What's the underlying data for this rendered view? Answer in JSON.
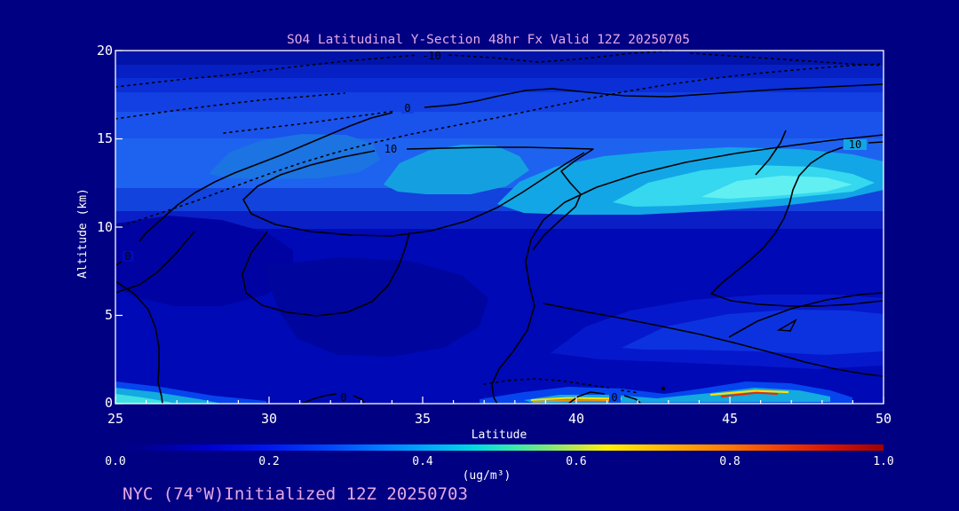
{
  "chart_data": {
    "type": "heatmap",
    "title": "SO4 Latitudinal Y-Section 48hr  Fx Valid 12Z 20250705",
    "xlabel": "Latitude",
    "ylabel": "Altitude (km)",
    "xlim": [
      25,
      50
    ],
    "ylim": [
      0,
      20
    ],
    "x_tick_labels": [
      "25",
      "30",
      "35",
      "40",
      "45",
      "50"
    ],
    "y_tick_labels": [
      "20",
      "15",
      "10",
      "5",
      "0"
    ],
    "grid": false,
    "colorbar": {
      "label": "(ug/m³)",
      "range": [
        0.0,
        1.0
      ],
      "ticks": [
        "0.0",
        "0.2",
        "0.4",
        "0.6",
        "0.8",
        "1.0"
      ],
      "stops": [
        {
          "pos": "0%",
          "color": "#000082"
        },
        {
          "pos": "5%",
          "color": "#000099"
        },
        {
          "pos": "12%",
          "color": "#0000CD"
        },
        {
          "pos": "20%",
          "color": "#0018EE"
        },
        {
          "pos": "28%",
          "color": "#0048F8"
        },
        {
          "pos": "35%",
          "color": "#0080FF"
        },
        {
          "pos": "42%",
          "color": "#00B4F4"
        },
        {
          "pos": "47%",
          "color": "#00DCDC"
        },
        {
          "pos": "52%",
          "color": "#3CE8A8"
        },
        {
          "pos": "56%",
          "color": "#78E878"
        },
        {
          "pos": "60%",
          "color": "#BEE846"
        },
        {
          "pos": "64%",
          "color": "#FFF000"
        },
        {
          "pos": "72%",
          "color": "#FFB400"
        },
        {
          "pos": "80%",
          "color": "#FF7800"
        },
        {
          "pos": "87%",
          "color": "#F03C00"
        },
        {
          "pos": "93%",
          "color": "#D81400"
        },
        {
          "pos": "100%",
          "color": "#A00000"
        }
      ]
    },
    "contour_levels_labeled": [
      "-10",
      "0",
      "10"
    ],
    "contour_labels": [
      {
        "text": "-10",
        "lat": 35.3,
        "alt": 19.7,
        "style": "dotted"
      },
      {
        "text": "0",
        "lat": 34.5,
        "alt": 16.7,
        "style": "solid"
      },
      {
        "text": "10",
        "lat": 34.0,
        "alt": 14.4,
        "style": "solid"
      },
      {
        "text": "10",
        "lat": 49.1,
        "alt": 14.7,
        "style": "solid"
      },
      {
        "text": "0",
        "lat": 25.4,
        "alt": 8.4,
        "style": "solid"
      },
      {
        "text": "0",
        "lat": 32.4,
        "alt": 0.3,
        "style": "solid"
      },
      {
        "text": "0",
        "lat": 41.2,
        "alt": 0.3,
        "style": "solid"
      }
    ],
    "features": [
      {
        "region": "upper-level SO4 plume, 12-16 km, lat 33-50",
        "value_ug_m3": "0.30-0.45"
      },
      {
        "region": "plume core, 13-15 km, lat 40-48",
        "value_ug_m3": "~0.45 (bright cyan)"
      },
      {
        "region": "background troposphere",
        "value_ug_m3": "0.10-0.20 (blue)"
      },
      {
        "region": "surface streak, lat 38.5-41",
        "value_ug_m3": "up to ~0.8 (yellow/orange)"
      },
      {
        "region": "surface streak, lat 44.5-46.5",
        "value_ug_m3": "up to ~0.95 (red)"
      },
      {
        "region": "surface patch, lat 25-26.5",
        "value_ug_m3": "~0.4 (cyan)"
      },
      {
        "region": "stratosphere above 17 km",
        "value_ug_m3": "0.05-0.15, dotted negative contours (-10)"
      }
    ]
  },
  "footer": {
    "annotation": "NYC (74°W)Initialized 12Z 20250703"
  },
  "palette": {
    "background": "#000082",
    "axis": "#FFFFFF",
    "text": "#FFFFFF",
    "title": "#E4A9E4",
    "contour": "#000000",
    "field_base": "#0009B6",
    "band_top1": "#0113A8",
    "band_top2": "#0620C4",
    "band_top3": "#0B2ED6",
    "band_top4": "#1240E2",
    "band_bright1": "#1A52EC",
    "band_bright2": "#1E63F0",
    "band_trans": "#1243DC",
    "band_fade": "#0A1FC6",
    "cyan_light": "#12A6E6",
    "cyan_mid": "#35D8EE",
    "cyan_core": "#62EFF2",
    "cyan_patch": "#14A0E0",
    "left_patch": "#1B74E2",
    "dark_lobe1": "#0003A2",
    "dark_lobe2": "#00059E",
    "low_wedge1": "#0618CC",
    "low_wedge2": "#0C32E0",
    "surf_blue": "#0645EE",
    "surf_cyan": "#13AADF",
    "surf_cyan2": "#3FE0E4",
    "streak_yellow": "#FFE000",
    "streak_orange": "#FF8C00",
    "streak_red": "#E82800"
  }
}
